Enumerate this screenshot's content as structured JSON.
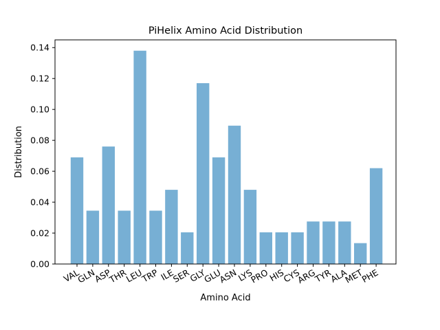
{
  "chart_data": {
    "type": "bar",
    "title": "PiHelix Amino Acid Distribution",
    "xlabel": "Amino Acid",
    "ylabel": "Distribution",
    "categories": [
      "VAL",
      "GLN",
      "ASP",
      "THR",
      "LEU",
      "TRP",
      "ILE",
      "SER",
      "GLY",
      "GLU",
      "ASN",
      "LYS",
      "PRO",
      "HIS",
      "CYS",
      "ARG",
      "TYR",
      "ALA",
      "MET",
      "PHE"
    ],
    "values": [
      0.069,
      0.0345,
      0.076,
      0.0345,
      0.138,
      0.0345,
      0.048,
      0.0205,
      0.117,
      0.069,
      0.0895,
      0.048,
      0.0205,
      0.0205,
      0.0205,
      0.0275,
      0.0275,
      0.0275,
      0.0135,
      0.062
    ],
    "ylim": [
      0,
      0.145
    ],
    "yticks": [
      0.0,
      0.02,
      0.04,
      0.06,
      0.08,
      0.1,
      0.12,
      0.14
    ],
    "ytick_labels": [
      "0.00",
      "0.02",
      "0.04",
      "0.06",
      "0.08",
      "0.10",
      "0.12",
      "0.14"
    ],
    "bar_color": "#77afd4",
    "grid": false,
    "legend": "none"
  }
}
